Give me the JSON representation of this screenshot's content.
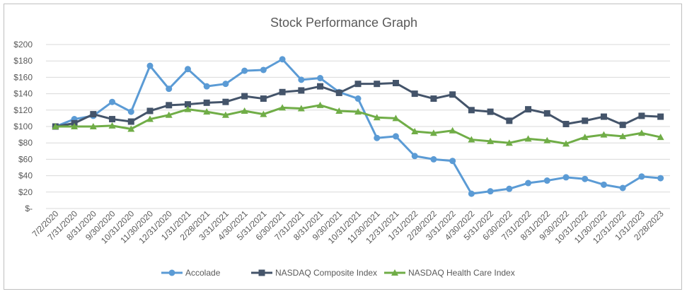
{
  "chart_data": {
    "type": "line",
    "title": "Stock Performance Graph",
    "xlabel": "",
    "ylabel": "",
    "ylim": [
      0,
      200
    ],
    "yticks": [
      0,
      20,
      40,
      60,
      80,
      100,
      120,
      140,
      160,
      180,
      200
    ],
    "ytick_labels": [
      "$-",
      "$20",
      "$40",
      "$60",
      "$80",
      "$100",
      "$120",
      "$140",
      "$160",
      "$180",
      "$200"
    ],
    "grid": true,
    "legend_position": "bottom",
    "categories": [
      "7/2/2020",
      "7/31/2020",
      "8/31/2020",
      "9/30/2020",
      "10/31/2020",
      "11/30/2020",
      "12/31/2020",
      "1/31/2021",
      "2/28/2021",
      "3/31/2021",
      "4/30/2021",
      "5/31/2021",
      "6/30/2021",
      "7/31/2021",
      "8/31/2021",
      "9/30/2021",
      "10/31/2021",
      "11/30/2021",
      "12/31/2021",
      "1/31/2022",
      "2/28/2022",
      "3/31/2022",
      "4/30/2022",
      "5/31/2022",
      "6/30/2022",
      "7/31/2022",
      "8/31/2022",
      "9/30/2022",
      "10/31/2022",
      "11/30/2022",
      "12/31/2022",
      "1/31/2023",
      "2/28/2023"
    ],
    "series": [
      {
        "name": "Accolade",
        "color": "#5b9bd5",
        "marker": "circle",
        "values": [
          100,
          109,
          113,
          130,
          118,
          174,
          146,
          170,
          149,
          152,
          168,
          169,
          182,
          157,
          159,
          142,
          134,
          86,
          88,
          64,
          60,
          58,
          18,
          21,
          24,
          31,
          34,
          38,
          36,
          29,
          25,
          39,
          37
        ]
      },
      {
        "name": "NASDAQ Composite Index",
        "color": "#44546a",
        "marker": "square",
        "values": [
          100,
          104,
          115,
          109,
          106,
          119,
          126,
          127,
          129,
          130,
          137,
          134,
          142,
          144,
          149,
          141,
          152,
          152,
          153,
          140,
          134,
          139,
          120,
          118,
          107,
          121,
          116,
          103,
          107,
          112,
          102,
          113,
          112
        ]
      },
      {
        "name": "NASDAQ Health Care Index",
        "color": "#70ad47",
        "marker": "triangle",
        "values": [
          100,
          100,
          100,
          101,
          97,
          109,
          114,
          121,
          118,
          114,
          119,
          115,
          123,
          122,
          126,
          119,
          118,
          111,
          110,
          94,
          92,
          95,
          84,
          82,
          80,
          85,
          83,
          79,
          87,
          90,
          88,
          92,
          87
        ]
      }
    ]
  }
}
